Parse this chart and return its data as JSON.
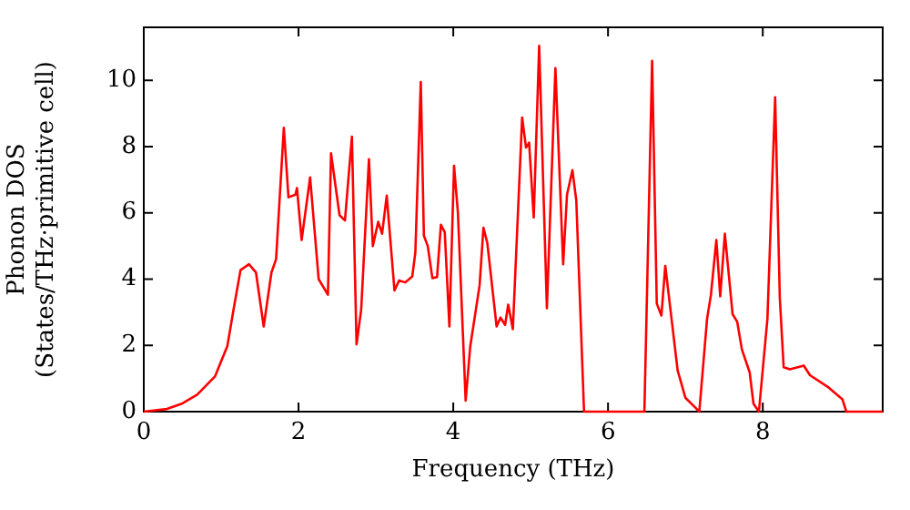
{
  "chart_data": {
    "type": "line",
    "xlabel": "Frequency (THz)",
    "ylabel": "Phonon DOS\n(States/THz·primitive cell)",
    "xlim": [
      0,
      9.55
    ],
    "ylim": [
      0,
      11.6
    ],
    "xticks": [
      0,
      2,
      4,
      6,
      8
    ],
    "yticks": [
      0,
      2,
      4,
      6,
      8,
      10
    ],
    "marker": "none",
    "line_style": "solid",
    "series": [
      {
        "color": "#ff0000",
        "x": [
          0,
          0.3,
          0.5,
          0.69,
          0.92,
          1.08,
          1.16,
          1.25,
          1.36,
          1.45,
          1.55,
          1.65,
          1.71,
          1.81,
          1.87,
          1.96,
          1.98,
          2.04,
          2.15,
          2.26,
          2.38,
          2.42,
          2.53,
          2.6,
          2.69,
          2.75,
          2.81,
          2.91,
          2.96,
          3.03,
          3.08,
          3.14,
          3.24,
          3.3,
          3.38,
          3.47,
          3.51,
          3.58,
          3.62,
          3.67,
          3.73,
          3.79,
          3.84,
          3.89,
          3.95,
          4.01,
          4.06,
          4.16,
          4.22,
          4.34,
          4.39,
          4.44,
          4.56,
          4.61,
          4.67,
          4.71,
          4.77,
          4.89,
          4.94,
          4.98,
          5.04,
          5.11,
          5.21,
          5.32,
          5.42,
          5.47,
          5.54,
          5.59,
          5.69,
          6.47,
          6.57,
          6.63,
          6.69,
          6.74,
          6.83,
          6.9,
          7.0,
          7.18,
          7.28,
          7.33,
          7.4,
          7.45,
          7.51,
          7.61,
          7.67,
          7.73,
          7.83,
          7.88,
          7.95,
          8.06,
          8.16,
          8.22,
          8.27,
          8.35,
          8.53,
          8.61,
          8.85,
          9.03,
          9.08,
          9.55
        ],
        "values": [
          0,
          0.08,
          0.25,
          0.51,
          1.06,
          1.98,
          3.08,
          4.27,
          4.45,
          4.2,
          2.57,
          4.2,
          4.6,
          8.57,
          6.47,
          6.55,
          6.75,
          5.18,
          7.07,
          4.0,
          3.53,
          7.8,
          5.93,
          5.77,
          8.3,
          2.03,
          3.08,
          7.62,
          5.0,
          5.73,
          5.37,
          6.52,
          3.66,
          3.96,
          3.9,
          4.08,
          4.81,
          9.95,
          5.31,
          5.0,
          4.03,
          4.06,
          5.64,
          5.42,
          2.57,
          7.42,
          6.0,
          0.33,
          1.98,
          3.81,
          5.55,
          5.09,
          2.57,
          2.84,
          2.62,
          3.23,
          2.49,
          8.88,
          7.97,
          8.12,
          5.86,
          11.04,
          3.12,
          10.37,
          4.45,
          6.55,
          7.29,
          6.37,
          0,
          0,
          10.59,
          3.26,
          2.9,
          4.4,
          2.62,
          1.24,
          0.42,
          0,
          2.8,
          3.53,
          5.18,
          3.48,
          5.37,
          2.94,
          2.71,
          1.88,
          1.19,
          0.24,
          0,
          2.8,
          9.49,
          3.44,
          1.34,
          1.28,
          1.39,
          1.1,
          0.73,
          0.37,
          0,
          0
        ]
      }
    ]
  }
}
